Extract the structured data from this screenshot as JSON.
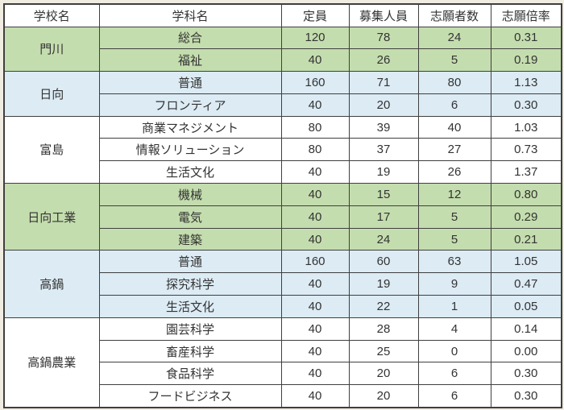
{
  "table": {
    "headers": [
      "学校名",
      "学科名",
      "定員",
      "募集人員",
      "志願者数",
      "志願倍率"
    ],
    "colors": {
      "green": "#c4ddae",
      "blue": "#dcebf4",
      "white": "#ffffff",
      "header": "#ffffff",
      "border": "#3f3f3f",
      "text": "#333333",
      "page_bg": "#f0ece2"
    },
    "groups": [
      {
        "school": "門川",
        "color": "green",
        "rows": [
          {
            "dept": "総合",
            "capacity": "120",
            "recruit": "78",
            "applicants": "24",
            "ratio": "0.31"
          },
          {
            "dept": "福祉",
            "capacity": "40",
            "recruit": "26",
            "applicants": "5",
            "ratio": "0.19"
          }
        ]
      },
      {
        "school": "日向",
        "color": "blue",
        "rows": [
          {
            "dept": "普通",
            "capacity": "160",
            "recruit": "71",
            "applicants": "80",
            "ratio": "1.13"
          },
          {
            "dept": "フロンティア",
            "capacity": "40",
            "recruit": "20",
            "applicants": "6",
            "ratio": "0.30"
          }
        ]
      },
      {
        "school": "富島",
        "color": "white",
        "rows": [
          {
            "dept": "商業マネジメント",
            "capacity": "80",
            "recruit": "39",
            "applicants": "40",
            "ratio": "1.03"
          },
          {
            "dept": "情報ソリューション",
            "capacity": "80",
            "recruit": "37",
            "applicants": "27",
            "ratio": "0.73"
          },
          {
            "dept": "生活文化",
            "capacity": "40",
            "recruit": "19",
            "applicants": "26",
            "ratio": "1.37"
          }
        ]
      },
      {
        "school": "日向工業",
        "color": "green",
        "rows": [
          {
            "dept": "機械",
            "capacity": "40",
            "recruit": "15",
            "applicants": "12",
            "ratio": "0.80"
          },
          {
            "dept": "電気",
            "capacity": "40",
            "recruit": "17",
            "applicants": "5",
            "ratio": "0.29"
          },
          {
            "dept": "建築",
            "capacity": "40",
            "recruit": "24",
            "applicants": "5",
            "ratio": "0.21"
          }
        ]
      },
      {
        "school": "高鍋",
        "color": "blue",
        "rows": [
          {
            "dept": "普通",
            "capacity": "160",
            "recruit": "60",
            "applicants": "63",
            "ratio": "1.05"
          },
          {
            "dept": "探究科学",
            "capacity": "40",
            "recruit": "19",
            "applicants": "9",
            "ratio": "0.47"
          },
          {
            "dept": "生活文化",
            "capacity": "40",
            "recruit": "22",
            "applicants": "1",
            "ratio": "0.05"
          }
        ]
      },
      {
        "school": "高鍋農業",
        "color": "white",
        "rows": [
          {
            "dept": "園芸科学",
            "capacity": "40",
            "recruit": "28",
            "applicants": "4",
            "ratio": "0.14"
          },
          {
            "dept": "畜産科学",
            "capacity": "40",
            "recruit": "25",
            "applicants": "0",
            "ratio": "0.00"
          },
          {
            "dept": "食品科学",
            "capacity": "40",
            "recruit": "20",
            "applicants": "6",
            "ratio": "0.30"
          },
          {
            "dept": "フードビジネス",
            "capacity": "40",
            "recruit": "20",
            "applicants": "6",
            "ratio": "0.30"
          }
        ]
      }
    ]
  },
  "chart_data": {
    "type": "table",
    "title": "",
    "columns": [
      "学校名",
      "学科名",
      "定員",
      "募集人員",
      "志願者数",
      "志願倍率"
    ],
    "rows": [
      [
        "門川",
        "総合",
        120,
        78,
        24,
        0.31
      ],
      [
        "門川",
        "福祉",
        40,
        26,
        5,
        0.19
      ],
      [
        "日向",
        "普通",
        160,
        71,
        80,
        1.13
      ],
      [
        "日向",
        "フロンティア",
        40,
        20,
        6,
        0.3
      ],
      [
        "富島",
        "商業マネジメント",
        80,
        39,
        40,
        1.03
      ],
      [
        "富島",
        "情報ソリューション",
        80,
        37,
        27,
        0.73
      ],
      [
        "富島",
        "生活文化",
        40,
        19,
        26,
        1.37
      ],
      [
        "日向工業",
        "機械",
        40,
        15,
        12,
        0.8
      ],
      [
        "日向工業",
        "電気",
        40,
        17,
        5,
        0.29
      ],
      [
        "日向工業",
        "建築",
        40,
        24,
        5,
        0.21
      ],
      [
        "高鍋",
        "普通",
        160,
        60,
        63,
        1.05
      ],
      [
        "高鍋",
        "探究科学",
        40,
        19,
        9,
        0.47
      ],
      [
        "高鍋",
        "生活文化",
        40,
        22,
        1,
        0.05
      ],
      [
        "高鍋農業",
        "園芸科学",
        40,
        28,
        4,
        0.14
      ],
      [
        "高鍋農業",
        "畜産科学",
        40,
        25,
        0,
        0.0
      ],
      [
        "高鍋農業",
        "食品科学",
        40,
        20,
        6,
        0.3
      ],
      [
        "高鍋農業",
        "フードビジネス",
        40,
        20,
        6,
        0.3
      ]
    ]
  }
}
